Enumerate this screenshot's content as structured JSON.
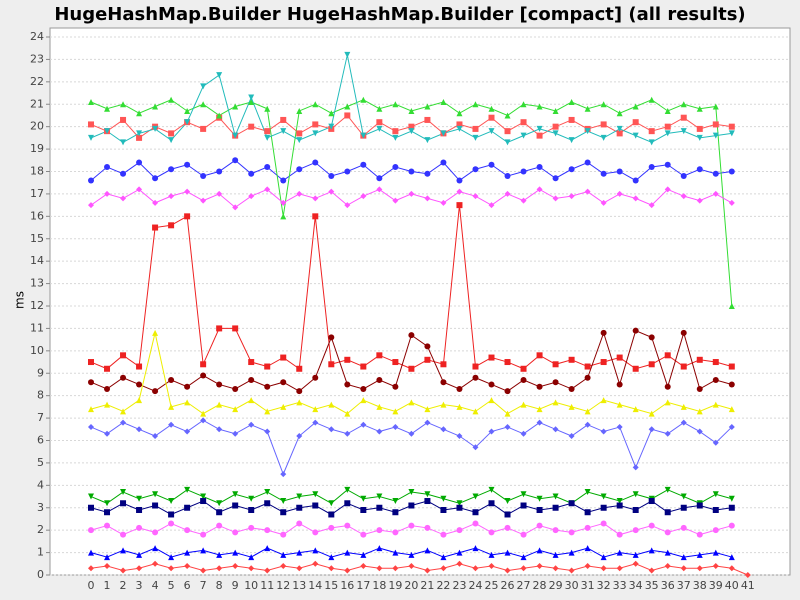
{
  "chart_data": {
    "type": "line",
    "title": "HugeHashMap.Builder HugeHashMap.Builder [compact] (all results)",
    "y_label": "ms",
    "categories": [
      0,
      1,
      2,
      3,
      4,
      5,
      6,
      7,
      8,
      9,
      10,
      11,
      12,
      13,
      14,
      15,
      16,
      17,
      18,
      19,
      20,
      21,
      22,
      23,
      24,
      25,
      26,
      27,
      28,
      29,
      30,
      31,
      32,
      33,
      34,
      35,
      36,
      37,
      38,
      39,
      40,
      41
    ],
    "ylim": [
      0,
      24
    ],
    "yticks": [
      0,
      1,
      2,
      3,
      4,
      5,
      6,
      7,
      8,
      9,
      10,
      11,
      12,
      13,
      14,
      15,
      16,
      17,
      18,
      19,
      20,
      21,
      22,
      23,
      24
    ],
    "grid": true,
    "series": [
      {
        "color": "#ff5555",
        "values": [
          20.1,
          19.8,
          20.3,
          19.5,
          20.0,
          19.7,
          20.2,
          19.9,
          20.4,
          19.6,
          20.0,
          19.8,
          20.3,
          19.7,
          20.1,
          19.9,
          20.5,
          19.6,
          20.2,
          19.8,
          20.0,
          20.3,
          19.7,
          20.1,
          19.9,
          20.4,
          19.8,
          20.2,
          19.6,
          20.0,
          20.3,
          19.9,
          20.1,
          19.7,
          20.2,
          19.8,
          20.0,
          20.4,
          19.9,
          20.1,
          20.0,
          null
        ]
      },
      {
        "color": "#3333ff",
        "values": [
          17.6,
          18.2,
          17.9,
          18.4,
          17.7,
          18.1,
          18.3,
          17.8,
          18.0,
          18.5,
          17.9,
          18.2,
          17.6,
          18.1,
          18.4,
          17.8,
          18.0,
          18.3,
          17.7,
          18.2,
          18.0,
          17.9,
          18.4,
          17.6,
          18.1,
          18.3,
          17.8,
          18.0,
          18.2,
          17.7,
          18.1,
          18.4,
          17.9,
          18.0,
          17.6,
          18.2,
          18.3,
          17.8,
          18.1,
          17.9,
          18.0,
          null
        ]
      },
      {
        "color": "#33dd33",
        "values": [
          21.1,
          20.8,
          21.0,
          20.6,
          20.9,
          21.2,
          20.7,
          21.0,
          20.5,
          20.9,
          21.1,
          20.8,
          16.0,
          20.7,
          21.0,
          20.6,
          20.9,
          21.2,
          20.8,
          21.0,
          20.7,
          20.9,
          21.1,
          20.6,
          21.0,
          20.8,
          20.5,
          21.0,
          20.9,
          20.7,
          21.1,
          20.8,
          21.0,
          20.6,
          20.9,
          21.2,
          20.7,
          21.0,
          20.8,
          20.9,
          12.0,
          null
        ]
      },
      {
        "color": "#ff55ff",
        "values": [
          16.5,
          17.0,
          16.8,
          17.2,
          16.6,
          16.9,
          17.1,
          16.7,
          17.0,
          16.4,
          16.9,
          17.2,
          16.6,
          17.0,
          16.8,
          17.1,
          16.5,
          16.9,
          17.2,
          16.7,
          17.0,
          16.8,
          16.6,
          17.1,
          16.9,
          16.5,
          17.0,
          16.7,
          17.2,
          16.8,
          16.9,
          17.1,
          16.6,
          17.0,
          16.8,
          16.5,
          17.2,
          16.9,
          16.7,
          17.0,
          16.6,
          null
        ]
      },
      {
        "color": "#22bbbb",
        "values": [
          19.5,
          19.8,
          19.3,
          19.7,
          19.9,
          19.4,
          20.2,
          21.8,
          22.3,
          19.6,
          21.3,
          19.5,
          19.8,
          19.4,
          19.7,
          20.0,
          23.2,
          19.6,
          19.9,
          19.5,
          19.8,
          19.4,
          19.7,
          19.9,
          19.5,
          19.8,
          19.3,
          19.6,
          19.9,
          19.7,
          19.4,
          19.8,
          19.5,
          19.9,
          19.6,
          19.3,
          19.7,
          19.8,
          19.5,
          19.6,
          19.7,
          null
        ]
      },
      {
        "color": "#ee2222",
        "values": [
          9.5,
          9.2,
          9.8,
          9.3,
          15.5,
          15.6,
          16.0,
          9.4,
          11.0,
          11.0,
          9.5,
          9.3,
          9.7,
          9.2,
          16.0,
          9.4,
          9.6,
          9.3,
          9.8,
          9.5,
          9.2,
          9.6,
          9.4,
          16.5,
          9.3,
          9.7,
          9.5,
          9.2,
          9.8,
          9.4,
          9.6,
          9.3,
          9.5,
          9.7,
          9.2,
          9.4,
          9.8,
          9.3,
          9.6,
          9.5,
          9.3,
          null
        ]
      },
      {
        "color": "#8b0000",
        "values": [
          8.6,
          8.3,
          8.8,
          8.5,
          8.2,
          8.7,
          8.4,
          8.9,
          8.5,
          8.3,
          8.7,
          8.4,
          8.6,
          8.2,
          8.8,
          10.6,
          8.5,
          8.3,
          8.7,
          8.4,
          10.7,
          10.2,
          8.6,
          8.3,
          8.8,
          8.5,
          8.2,
          8.7,
          8.4,
          8.6,
          8.3,
          8.8,
          10.8,
          8.5,
          10.9,
          10.6,
          8.4,
          10.8,
          8.3,
          8.7,
          8.5,
          null
        ]
      },
      {
        "color": "#eeee00",
        "values": [
          7.4,
          7.6,
          7.3,
          7.8,
          10.8,
          7.5,
          7.7,
          7.2,
          7.6,
          7.4,
          7.8,
          7.3,
          7.5,
          7.7,
          7.4,
          7.6,
          7.2,
          7.8,
          7.5,
          7.3,
          7.7,
          7.4,
          7.6,
          7.5,
          7.3,
          7.8,
          7.2,
          7.6,
          7.4,
          7.7,
          7.5,
          7.3,
          7.8,
          7.6,
          7.4,
          7.2,
          7.7,
          7.5,
          7.3,
          7.6,
          7.4,
          null
        ]
      },
      {
        "color": "#6666ff",
        "values": [
          6.6,
          6.3,
          6.8,
          6.5,
          6.2,
          6.7,
          6.4,
          6.9,
          6.5,
          6.3,
          6.7,
          6.4,
          4.5,
          6.2,
          6.8,
          6.5,
          6.3,
          6.7,
          6.4,
          6.6,
          6.3,
          6.8,
          6.5,
          6.2,
          5.7,
          6.4,
          6.6,
          6.3,
          6.8,
          6.5,
          6.2,
          6.7,
          6.4,
          6.6,
          4.8,
          6.5,
          6.3,
          6.8,
          6.4,
          5.9,
          6.6,
          null
        ]
      },
      {
        "color": "#00aa00",
        "values": [
          3.5,
          3.2,
          3.7,
          3.4,
          3.6,
          3.3,
          3.8,
          3.5,
          3.2,
          3.6,
          3.4,
          3.7,
          3.3,
          3.5,
          3.6,
          3.2,
          3.8,
          3.4,
          3.5,
          3.3,
          3.7,
          3.6,
          3.4,
          3.2,
          3.5,
          3.8,
          3.3,
          3.6,
          3.4,
          3.5,
          3.2,
          3.7,
          3.5,
          3.3,
          3.6,
          3.4,
          3.8,
          3.5,
          3.2,
          3.6,
          3.4,
          null
        ]
      },
      {
        "color": "#000080",
        "values": [
          3.0,
          2.8,
          3.2,
          2.9,
          3.1,
          2.7,
          3.0,
          3.3,
          2.8,
          3.1,
          2.9,
          3.2,
          2.8,
          3.0,
          3.1,
          2.7,
          3.2,
          2.9,
          3.0,
          2.8,
          3.1,
          3.3,
          2.9,
          3.0,
          2.8,
          3.2,
          2.7,
          3.1,
          2.9,
          3.0,
          3.2,
          2.8,
          3.0,
          3.1,
          2.9,
          3.3,
          2.8,
          3.0,
          3.1,
          2.9,
          3.0,
          null
        ]
      },
      {
        "color": "#ff66ff",
        "values": [
          2.0,
          2.2,
          1.8,
          2.1,
          1.9,
          2.3,
          2.0,
          1.8,
          2.2,
          1.9,
          2.1,
          2.0,
          1.8,
          2.3,
          1.9,
          2.1,
          2.2,
          1.8,
          2.0,
          1.9,
          2.2,
          2.1,
          1.8,
          2.0,
          2.3,
          1.9,
          2.1,
          1.8,
          2.2,
          2.0,
          1.9,
          2.1,
          2.3,
          1.8,
          2.0,
          2.2,
          1.9,
          2.1,
          1.8,
          2.0,
          2.2,
          null
        ]
      },
      {
        "color": "#0000ff",
        "values": [
          1.0,
          0.8,
          1.1,
          0.9,
          1.2,
          0.8,
          1.0,
          1.1,
          0.9,
          1.0,
          0.8,
          1.2,
          0.9,
          1.0,
          1.1,
          0.8,
          1.0,
          0.9,
          1.2,
          1.0,
          0.9,
          1.1,
          0.8,
          1.0,
          1.2,
          0.9,
          1.0,
          0.8,
          1.1,
          0.9,
          1.0,
          1.2,
          0.8,
          1.0,
          0.9,
          1.1,
          1.0,
          0.8,
          0.9,
          1.0,
          0.8,
          null
        ]
      },
      {
        "color": "#ff4444",
        "values": [
          0.3,
          0.4,
          0.2,
          0.3,
          0.5,
          0.3,
          0.4,
          0.2,
          0.3,
          0.4,
          0.3,
          0.2,
          0.4,
          0.3,
          0.5,
          0.3,
          0.2,
          0.4,
          0.3,
          0.3,
          0.4,
          0.2,
          0.3,
          0.5,
          0.3,
          0.4,
          0.2,
          0.3,
          0.4,
          0.3,
          0.2,
          0.4,
          0.3,
          0.3,
          0.5,
          0.2,
          0.4,
          0.3,
          0.3,
          0.4,
          0.3,
          0.0
        ]
      }
    ]
  }
}
